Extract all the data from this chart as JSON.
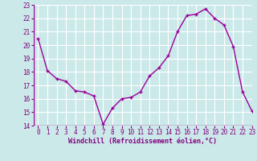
{
  "x": [
    0,
    1,
    2,
    3,
    4,
    5,
    6,
    7,
    8,
    9,
    10,
    11,
    12,
    13,
    14,
    15,
    16,
    17,
    18,
    19,
    20,
    21,
    22,
    23
  ],
  "y": [
    20.5,
    18.1,
    17.5,
    17.3,
    16.6,
    16.5,
    16.2,
    14.1,
    15.3,
    16.0,
    16.1,
    16.5,
    17.7,
    18.3,
    19.2,
    21.0,
    22.2,
    22.3,
    22.7,
    22.0,
    21.5,
    19.9,
    16.5,
    15.1
  ],
  "line_color": "#990099",
  "marker": "+",
  "marker_size": 3,
  "marker_linewidth": 1.0,
  "line_width": 1.0,
  "bg_color": "#cce9e9",
  "grid_color": "#ffffff",
  "xlabel": "Windchill (Refroidissement éolien,°C)",
  "xlabel_color": "#800080",
  "tick_color": "#800080",
  "label_fontsize": 5.5,
  "xlabel_fontsize": 6.0,
  "ylim": [
    14,
    23
  ],
  "xlim": [
    -0.5,
    23
  ],
  "yticks": [
    14,
    15,
    16,
    17,
    18,
    19,
    20,
    21,
    22,
    23
  ],
  "xticks": [
    0,
    1,
    2,
    3,
    4,
    5,
    6,
    7,
    8,
    9,
    10,
    11,
    12,
    13,
    14,
    15,
    16,
    17,
    18,
    19,
    20,
    21,
    22,
    23
  ]
}
